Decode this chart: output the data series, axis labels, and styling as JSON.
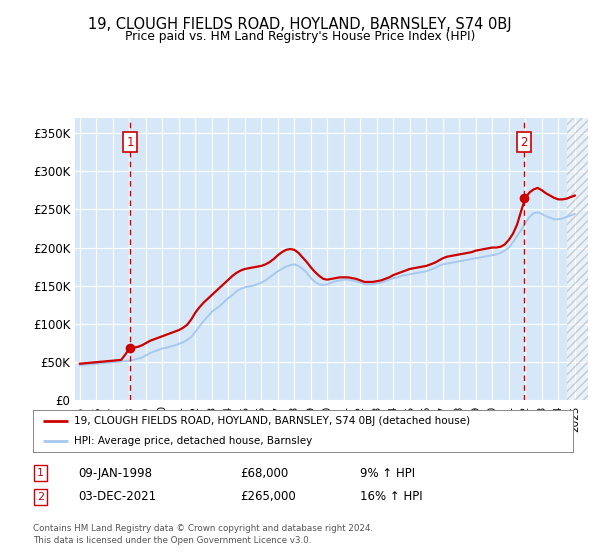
{
  "title": "19, CLOUGH FIELDS ROAD, HOYLAND, BARNSLEY, S74 0BJ",
  "subtitle": "Price paid vs. HM Land Registry's House Price Index (HPI)",
  "legend_line1": "19, CLOUGH FIELDS ROAD, HOYLAND, BARNSLEY, S74 0BJ (detached house)",
  "legend_line2": "HPI: Average price, detached house, Barnsley",
  "footnote": "Contains HM Land Registry data © Crown copyright and database right 2024.\nThis data is licensed under the Open Government Licence v3.0.",
  "sale1_date": "09-JAN-1998",
  "sale1_price": 68000,
  "sale1_hpi": "9% ↑ HPI",
  "sale2_date": "03-DEC-2021",
  "sale2_price": 265000,
  "sale2_hpi": "16% ↑ HPI",
  "sale1_x": 1998.03,
  "sale2_x": 2021.92,
  "ylabel_ticks": [
    "£0",
    "£50K",
    "£100K",
    "£150K",
    "£200K",
    "£250K",
    "£300K",
    "£350K"
  ],
  "ytick_values": [
    0,
    50000,
    100000,
    150000,
    200000,
    250000,
    300000,
    350000
  ],
  "ylim": [
    0,
    370000
  ],
  "xlim_left": 1994.7,
  "xlim_right": 2025.8,
  "plot_bg": "#d6e8f7",
  "hpi_color": "#a8c8ee",
  "price_color": "#cc0000",
  "marker_color": "#cc0000",
  "vline_color": "#cc0000",
  "box_color": "#cc0000",
  "hpi_data_x": [
    1995.0,
    1995.25,
    1995.5,
    1995.75,
    1996.0,
    1996.25,
    1996.5,
    1996.75,
    1997.0,
    1997.25,
    1997.5,
    1997.75,
    1998.0,
    1998.25,
    1998.5,
    1998.75,
    1999.0,
    1999.25,
    1999.5,
    1999.75,
    2000.0,
    2000.25,
    2000.5,
    2000.75,
    2001.0,
    2001.25,
    2001.5,
    2001.75,
    2002.0,
    2002.25,
    2002.5,
    2002.75,
    2003.0,
    2003.25,
    2003.5,
    2003.75,
    2004.0,
    2004.25,
    2004.5,
    2004.75,
    2005.0,
    2005.25,
    2005.5,
    2005.75,
    2006.0,
    2006.25,
    2006.5,
    2006.75,
    2007.0,
    2007.25,
    2007.5,
    2007.75,
    2008.0,
    2008.25,
    2008.5,
    2008.75,
    2009.0,
    2009.25,
    2009.5,
    2009.75,
    2010.0,
    2010.25,
    2010.5,
    2010.75,
    2011.0,
    2011.25,
    2011.5,
    2011.75,
    2012.0,
    2012.25,
    2012.5,
    2012.75,
    2013.0,
    2013.25,
    2013.5,
    2013.75,
    2014.0,
    2014.25,
    2014.5,
    2014.75,
    2015.0,
    2015.25,
    2015.5,
    2015.75,
    2016.0,
    2016.25,
    2016.5,
    2016.75,
    2017.0,
    2017.25,
    2017.5,
    2017.75,
    2018.0,
    2018.25,
    2018.5,
    2018.75,
    2019.0,
    2019.25,
    2019.5,
    2019.75,
    2020.0,
    2020.25,
    2020.5,
    2020.75,
    2021.0,
    2021.25,
    2021.5,
    2021.75,
    2022.0,
    2022.25,
    2022.5,
    2022.75,
    2023.0,
    2023.25,
    2023.5,
    2023.75,
    2024.0,
    2024.25,
    2024.5,
    2024.75,
    2025.0
  ],
  "hpi_data_y": [
    46000,
    46500,
    47000,
    47500,
    48000,
    48500,
    49000,
    49500,
    50000,
    50500,
    51000,
    51500,
    52000,
    53000,
    54500,
    56000,
    59000,
    62000,
    64000,
    66000,
    68000,
    69000,
    70500,
    72000,
    74000,
    76000,
    79000,
    83000,
    90000,
    97000,
    104000,
    110000,
    116000,
    120000,
    124000,
    129000,
    134000,
    138000,
    143000,
    146000,
    148000,
    149000,
    150000,
    152000,
    154000,
    157000,
    161000,
    165000,
    169000,
    172000,
    175000,
    177000,
    178000,
    176000,
    172000,
    167000,
    160000,
    155000,
    152000,
    151000,
    152000,
    154000,
    156000,
    157000,
    158000,
    158000,
    157000,
    156000,
    154000,
    152000,
    152000,
    152000,
    153000,
    154000,
    156000,
    158000,
    160000,
    161000,
    163000,
    164000,
    165000,
    166000,
    167000,
    168000,
    169000,
    171000,
    173000,
    176000,
    178000,
    179000,
    180000,
    181000,
    182000,
    183000,
    184000,
    185000,
    186000,
    187000,
    188000,
    189000,
    190000,
    191000,
    193000,
    196000,
    200000,
    207000,
    215000,
    223000,
    232000,
    240000,
    245000,
    246000,
    244000,
    241000,
    239000,
    237000,
    237000,
    238000,
    240000,
    242000,
    244000
  ],
  "price_data_x": [
    1995.0,
    1995.25,
    1995.5,
    1995.75,
    1996.0,
    1996.25,
    1996.5,
    1996.75,
    1997.0,
    1997.25,
    1997.5,
    1997.75,
    1998.0,
    1998.25,
    1998.5,
    1998.75,
    1999.0,
    1999.25,
    1999.5,
    1999.75,
    2000.0,
    2000.25,
    2000.5,
    2000.75,
    2001.0,
    2001.25,
    2001.5,
    2001.75,
    2002.0,
    2002.25,
    2002.5,
    2002.75,
    2003.0,
    2003.25,
    2003.5,
    2003.75,
    2004.0,
    2004.25,
    2004.5,
    2004.75,
    2005.0,
    2005.25,
    2005.5,
    2005.75,
    2006.0,
    2006.25,
    2006.5,
    2006.75,
    2007.0,
    2007.25,
    2007.5,
    2007.75,
    2008.0,
    2008.25,
    2008.5,
    2008.75,
    2009.0,
    2009.25,
    2009.5,
    2009.75,
    2010.0,
    2010.25,
    2010.5,
    2010.75,
    2011.0,
    2011.25,
    2011.5,
    2011.75,
    2012.0,
    2012.25,
    2012.5,
    2012.75,
    2013.0,
    2013.25,
    2013.5,
    2013.75,
    2014.0,
    2014.25,
    2014.5,
    2014.75,
    2015.0,
    2015.25,
    2015.5,
    2015.75,
    2016.0,
    2016.25,
    2016.5,
    2016.75,
    2017.0,
    2017.25,
    2017.5,
    2017.75,
    2018.0,
    2018.25,
    2018.5,
    2018.75,
    2019.0,
    2019.25,
    2019.5,
    2019.75,
    2020.0,
    2020.25,
    2020.5,
    2020.75,
    2021.0,
    2021.25,
    2021.5,
    2021.75,
    2022.0,
    2022.25,
    2022.5,
    2022.75,
    2023.0,
    2023.25,
    2023.5,
    2023.75,
    2024.0,
    2024.25,
    2024.5,
    2024.75,
    2025.0
  ],
  "price_data_y": [
    48000,
    48500,
    49000,
    49500,
    50000,
    50500,
    51000,
    51500,
    52000,
    52500,
    53000,
    60000,
    68000,
    69000,
    70000,
    72000,
    75000,
    78000,
    80000,
    82000,
    84000,
    86000,
    88000,
    90000,
    92000,
    95000,
    99000,
    106000,
    115000,
    122000,
    128000,
    133000,
    138000,
    143000,
    148000,
    153000,
    158000,
    163000,
    167000,
    170000,
    172000,
    173000,
    174000,
    175000,
    176000,
    178000,
    181000,
    185000,
    190000,
    194000,
    197000,
    198000,
    197000,
    193000,
    187000,
    181000,
    174000,
    168000,
    163000,
    159000,
    158000,
    159000,
    160000,
    161000,
    161000,
    161000,
    160000,
    159000,
    157000,
    155000,
    155000,
    155000,
    156000,
    157000,
    159000,
    161000,
    164000,
    166000,
    168000,
    170000,
    172000,
    173000,
    174000,
    175000,
    176000,
    178000,
    180000,
    183000,
    186000,
    188000,
    189000,
    190000,
    191000,
    192000,
    193000,
    194000,
    196000,
    197000,
    198000,
    199000,
    200000,
    200000,
    201000,
    204000,
    210000,
    218000,
    230000,
    248000,
    265000,
    272000,
    276000,
    278000,
    275000,
    271000,
    268000,
    265000,
    263000,
    263000,
    264000,
    266000,
    268000
  ]
}
